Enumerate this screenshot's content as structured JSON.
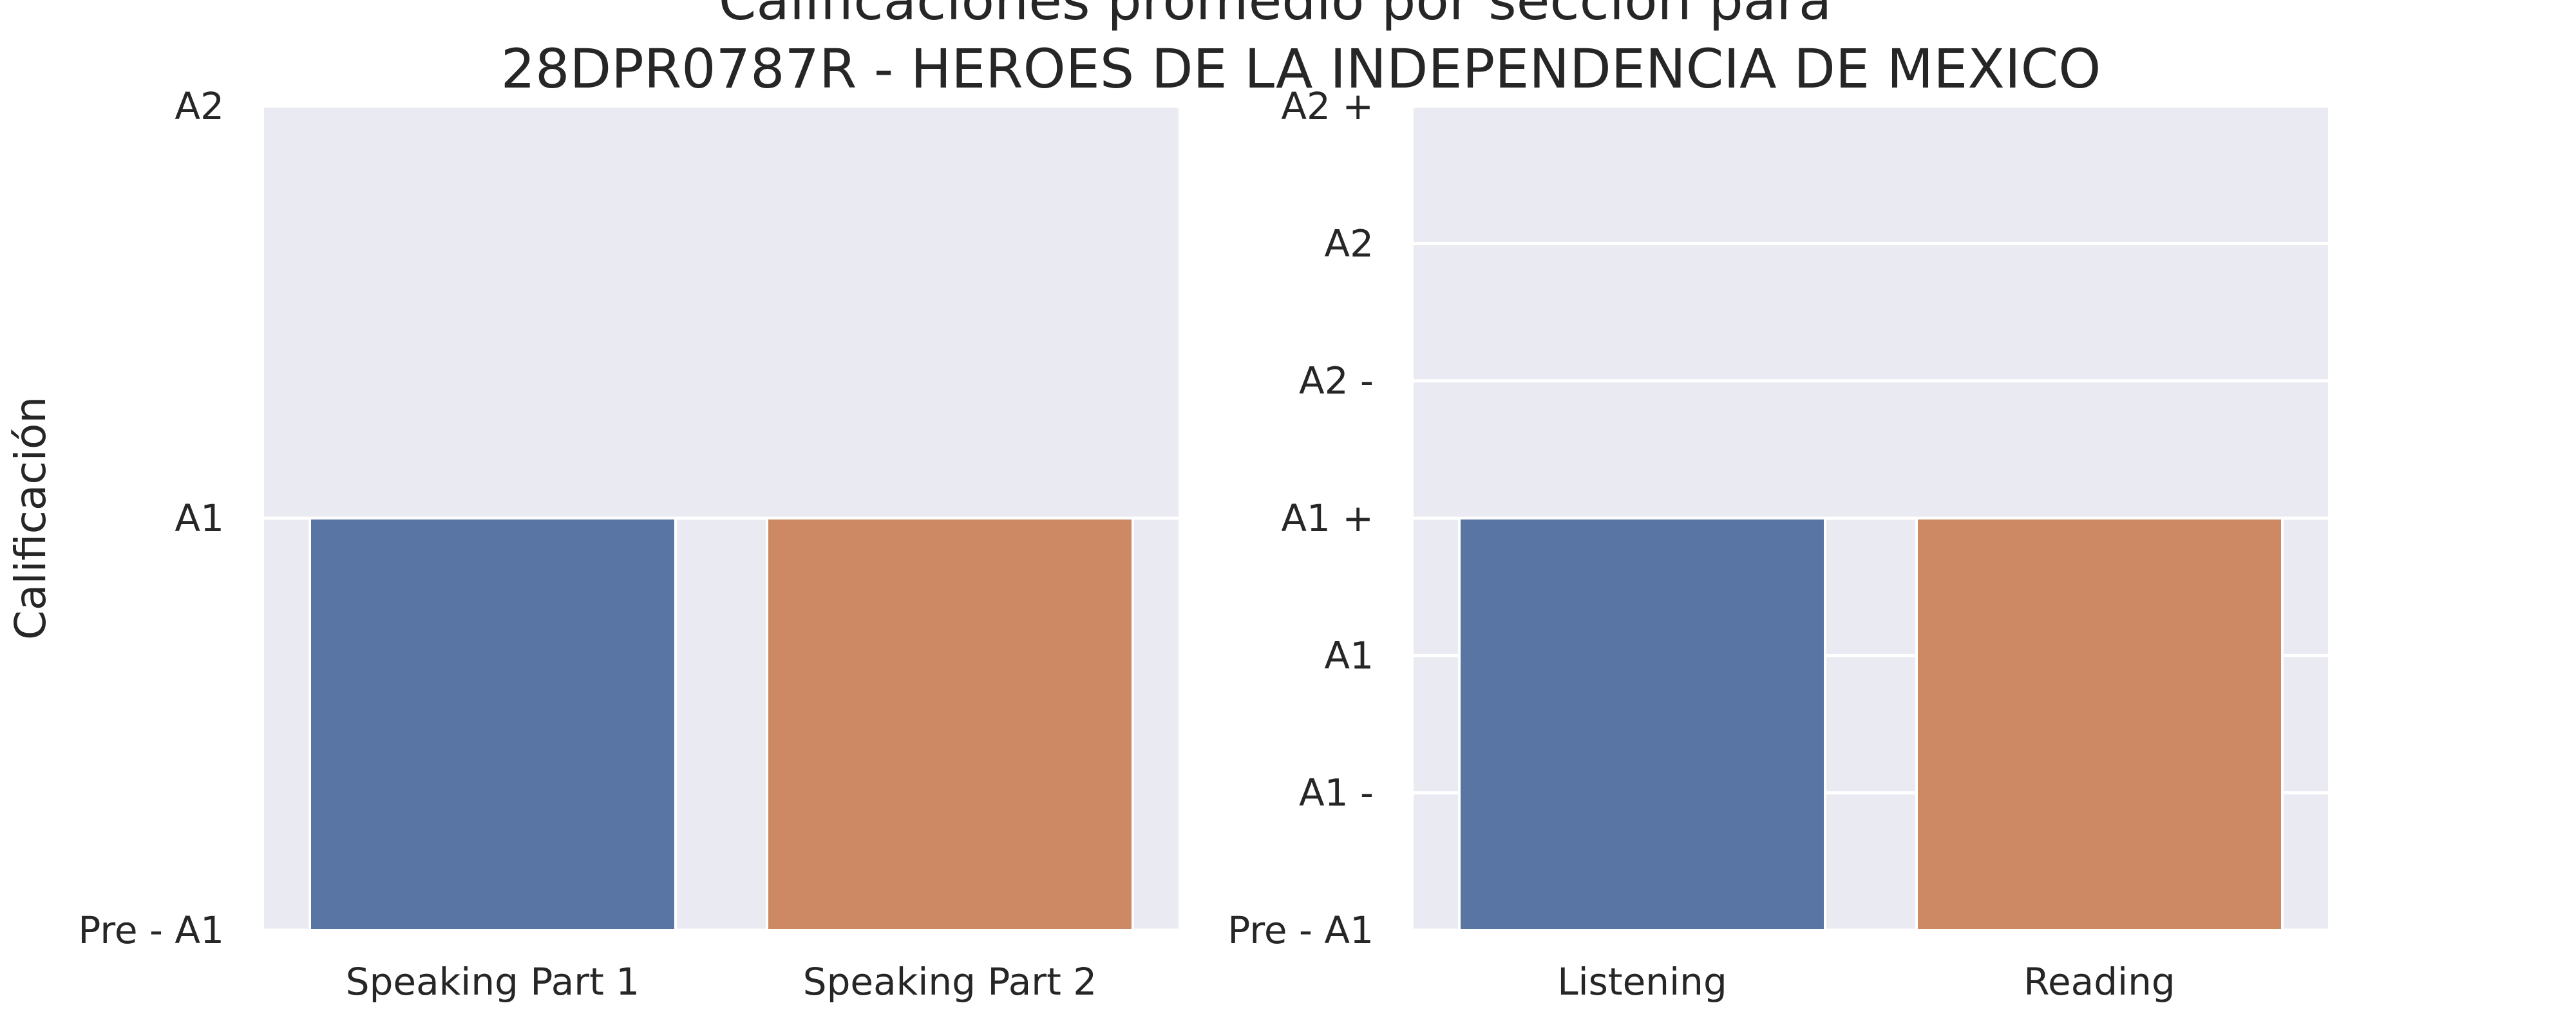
{
  "chart_data": {
    "type": "bar",
    "title_lines": [
      "Calificaciones promedio por sección para",
      "28DPR0787R - HEROES DE LA INDEPENDENCIA DE MEXICO"
    ],
    "panels": [
      {
        "ylabel": "Calificación",
        "yticks": [
          "Pre - A1",
          "A1",
          "A2"
        ],
        "ylim": [
          0,
          2
        ],
        "categories": [
          "Speaking Part 1",
          "Speaking Part 2"
        ],
        "values": [
          1,
          1
        ],
        "grid": true
      },
      {
        "ylabel": "",
        "yticks": [
          "Pre - A1",
          "A1 -",
          "A1",
          "A1 +",
          "A2 -",
          "A2",
          "A2 +"
        ],
        "ylim": [
          0,
          6
        ],
        "categories": [
          "Listening",
          "Reading"
        ],
        "values": [
          3,
          3
        ],
        "grid": true
      }
    ],
    "bar_colors": [
      "#5875a4",
      "#cc8963"
    ],
    "panel_background": "#eaeaf2",
    "grid_color": "#ffffff"
  }
}
